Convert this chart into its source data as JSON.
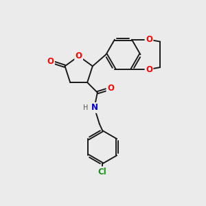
{
  "bg_color": "#ebebeb",
  "bond_color": "#1a1a1a",
  "bond_width": 1.4,
  "atom_colors": {
    "O": "#ff0000",
    "N": "#0000cc",
    "Cl": "#228b22",
    "H": "#555555"
  },
  "font_size_atom": 8.5,
  "font_size_small": 7.0,
  "figsize": [
    3.0,
    3.0
  ],
  "dpi": 100,
  "xlim": [
    0,
    10
  ],
  "ylim": [
    0,
    10
  ]
}
